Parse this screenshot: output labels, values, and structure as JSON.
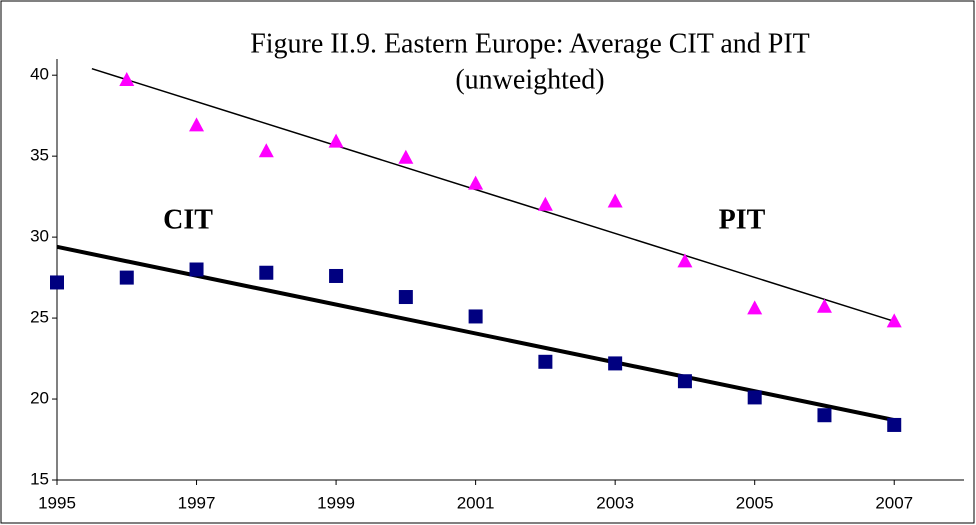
{
  "chart_data": {
    "type": "scatter",
    "title": "Figure II.9. Eastern Europe: Average CIT and PIT",
    "subtitle": "(unweighted)",
    "x": [
      1995,
      1996,
      1997,
      1998,
      1999,
      2000,
      2001,
      2002,
      2003,
      2004,
      2005,
      2006,
      2007
    ],
    "series": [
      {
        "name": "CIT",
        "color": "#000080",
        "marker": "square",
        "values": [
          27.2,
          27.5,
          28.0,
          27.8,
          27.6,
          26.3,
          25.1,
          22.3,
          22.2,
          21.1,
          20.1,
          19.0,
          18.4
        ]
      },
      {
        "name": "PIT",
        "color": "#ff00ff",
        "marker": "triangle",
        "values": [
          null,
          39.7,
          36.9,
          35.3,
          35.9,
          34.9,
          33.3,
          32.0,
          32.2,
          28.5,
          25.6,
          25.7,
          24.8
        ]
      }
    ],
    "trendlines": [
      {
        "color": "#000000",
        "width": 4,
        "x": [
          1995,
          2007
        ],
        "values": [
          29.4,
          18.7
        ]
      },
      {
        "color": "#000000",
        "width": 1.5,
        "x": [
          1995.5,
          2007
        ],
        "values": [
          40.4,
          24.8
        ]
      }
    ],
    "xlim": [
      1995,
      2008
    ],
    "xticks": [
      1995,
      1997,
      1999,
      2001,
      2003,
      2005,
      2007
    ],
    "ylim": [
      15,
      41
    ],
    "yticks": [
      15,
      20,
      25,
      30,
      35,
      40
    ],
    "grid": false
  }
}
